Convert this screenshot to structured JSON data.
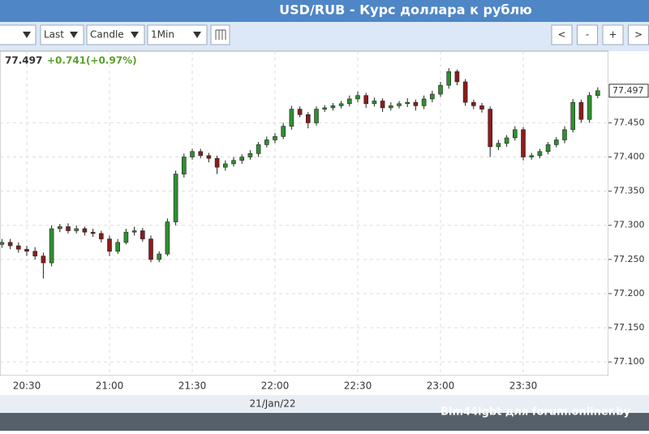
{
  "header": {
    "title": "USD/RUB - Курс доллара к рублю"
  },
  "toolbar": {
    "price_type": "Last",
    "chart_style": "Candle",
    "interval": "1Min",
    "buttons": [
      "<",
      "-",
      "+",
      ">"
    ]
  },
  "quote": {
    "change": "+0.741(+0.97%)"
  },
  "watermark": "Blm44lgbt для forum.onliner.by",
  "chart_data": {
    "type": "candlestick",
    "categories": [
      null,
      null,
      null,
      "20:30",
      null,
      null,
      null,
      null,
      null,
      null,
      null,
      null,
      null,
      "21:00",
      null,
      null,
      null,
      null,
      null,
      null,
      null,
      null,
      null,
      "21:30",
      null,
      null,
      null,
      null,
      null,
      null,
      null,
      null,
      null,
      "22:00",
      null,
      null,
      null,
      null,
      null,
      null,
      null,
      null,
      null,
      "22:30",
      null,
      null,
      null,
      null,
      null,
      null,
      null,
      null,
      null,
      "23:00",
      null,
      null,
      null,
      null,
      null,
      null,
      null,
      null,
      null,
      "23:30",
      null,
      null,
      null,
      null,
      null,
      null,
      null,
      null,
      null
    ],
    "date_label": "21/Jan/22",
    "open": [
      77.272,
      77.275,
      77.27,
      77.265,
      77.262,
      77.255,
      77.245,
      77.295,
      77.298,
      77.292,
      77.295,
      77.29,
      77.288,
      77.28,
      77.262,
      77.275,
      77.29,
      77.292,
      77.28,
      77.25,
      77.258,
      77.305,
      77.375,
      77.4,
      77.408,
      77.402,
      77.398,
      77.385,
      77.39,
      77.395,
      77.4,
      77.405,
      77.418,
      77.425,
      77.43,
      77.445,
      77.47,
      77.462,
      77.45,
      77.47,
      77.472,
      77.475,
      77.478,
      77.485,
      77.49,
      77.478,
      77.482,
      77.472,
      77.475,
      77.478,
      77.48,
      77.475,
      77.485,
      77.492,
      77.505,
      77.525,
      77.51,
      77.48,
      77.475,
      77.47,
      77.415,
      77.42,
      77.428,
      77.44,
      77.4,
      77.402,
      77.408,
      77.418,
      77.425,
      77.44,
      77.48,
      77.455,
      77.49
    ],
    "high": [
      77.28,
      77.28,
      77.275,
      77.27,
      77.268,
      77.26,
      77.3,
      77.302,
      77.303,
      77.3,
      77.298,
      77.295,
      77.292,
      77.285,
      77.28,
      77.295,
      77.298,
      77.296,
      77.285,
      77.262,
      77.31,
      77.38,
      77.405,
      77.412,
      77.412,
      77.406,
      77.402,
      77.395,
      77.4,
      77.404,
      77.41,
      77.422,
      77.43,
      77.435,
      77.45,
      77.475,
      77.474,
      77.466,
      77.474,
      77.476,
      77.479,
      77.482,
      77.49,
      77.496,
      77.494,
      77.487,
      77.486,
      77.48,
      77.482,
      77.486,
      77.484,
      77.49,
      77.497,
      77.51,
      77.53,
      77.528,
      77.514,
      77.484,
      77.479,
      77.474,
      77.425,
      77.432,
      77.445,
      77.444,
      77.406,
      77.412,
      77.422,
      77.429,
      77.445,
      77.485,
      77.484,
      77.495,
      77.502
    ],
    "low": [
      77.267,
      77.265,
      77.26,
      77.255,
      77.25,
      77.222,
      77.24,
      77.29,
      77.288,
      77.288,
      77.285,
      77.283,
      77.275,
      77.255,
      77.258,
      77.272,
      77.285,
      77.276,
      77.246,
      77.246,
      77.255,
      77.3,
      77.37,
      77.396,
      77.398,
      77.392,
      77.375,
      77.38,
      77.386,
      77.39,
      77.396,
      77.4,
      77.414,
      77.42,
      77.426,
      77.44,
      77.458,
      77.442,
      77.446,
      77.466,
      77.468,
      77.471,
      77.474,
      77.48,
      77.472,
      77.474,
      77.466,
      77.468,
      77.471,
      77.473,
      77.468,
      77.47,
      77.48,
      77.488,
      77.5,
      77.505,
      77.475,
      77.47,
      77.465,
      77.4,
      77.41,
      77.415,
      77.424,
      77.395,
      77.396,
      77.398,
      77.404,
      77.414,
      77.42,
      77.436,
      77.45,
      77.45,
      77.486
    ],
    "close": [
      77.275,
      77.27,
      77.265,
      77.262,
      77.255,
      77.245,
      77.295,
      77.298,
      77.292,
      77.295,
      77.29,
      77.288,
      77.28,
      77.262,
      77.275,
      77.29,
      77.292,
      77.28,
      77.25,
      77.258,
      77.305,
      77.375,
      77.4,
      77.408,
      77.402,
      77.398,
      77.385,
      77.39,
      77.395,
      77.4,
      77.405,
      77.418,
      77.425,
      77.43,
      77.445,
      77.47,
      77.462,
      77.45,
      77.47,
      77.472,
      77.475,
      77.478,
      77.485,
      77.49,
      77.478,
      77.482,
      77.472,
      77.475,
      77.478,
      77.48,
      77.475,
      77.485,
      77.492,
      77.505,
      77.525,
      77.51,
      77.48,
      77.475,
      77.47,
      77.415,
      77.42,
      77.428,
      77.44,
      77.4,
      77.402,
      77.408,
      77.418,
      77.425,
      77.44,
      77.48,
      77.455,
      77.49,
      77.497
    ],
    "up_color": "#2f8f2f",
    "down_color": "#8b1c1c",
    "ylim": [
      77.08,
      77.555
    ],
    "yticks": [
      {
        "value": 77.1,
        "label": "77.100"
      },
      {
        "value": 77.15,
        "label": "77.150"
      },
      {
        "value": 77.2,
        "label": "77.200"
      },
      {
        "value": 77.25,
        "label": "77.250"
      },
      {
        "value": 77.3,
        "label": "77.300"
      },
      {
        "value": 77.35,
        "label": "77.350"
      },
      {
        "value": 77.4,
        "label": "77.400"
      },
      {
        "value": 77.45,
        "label": "77.450"
      }
    ],
    "grid": true
  }
}
